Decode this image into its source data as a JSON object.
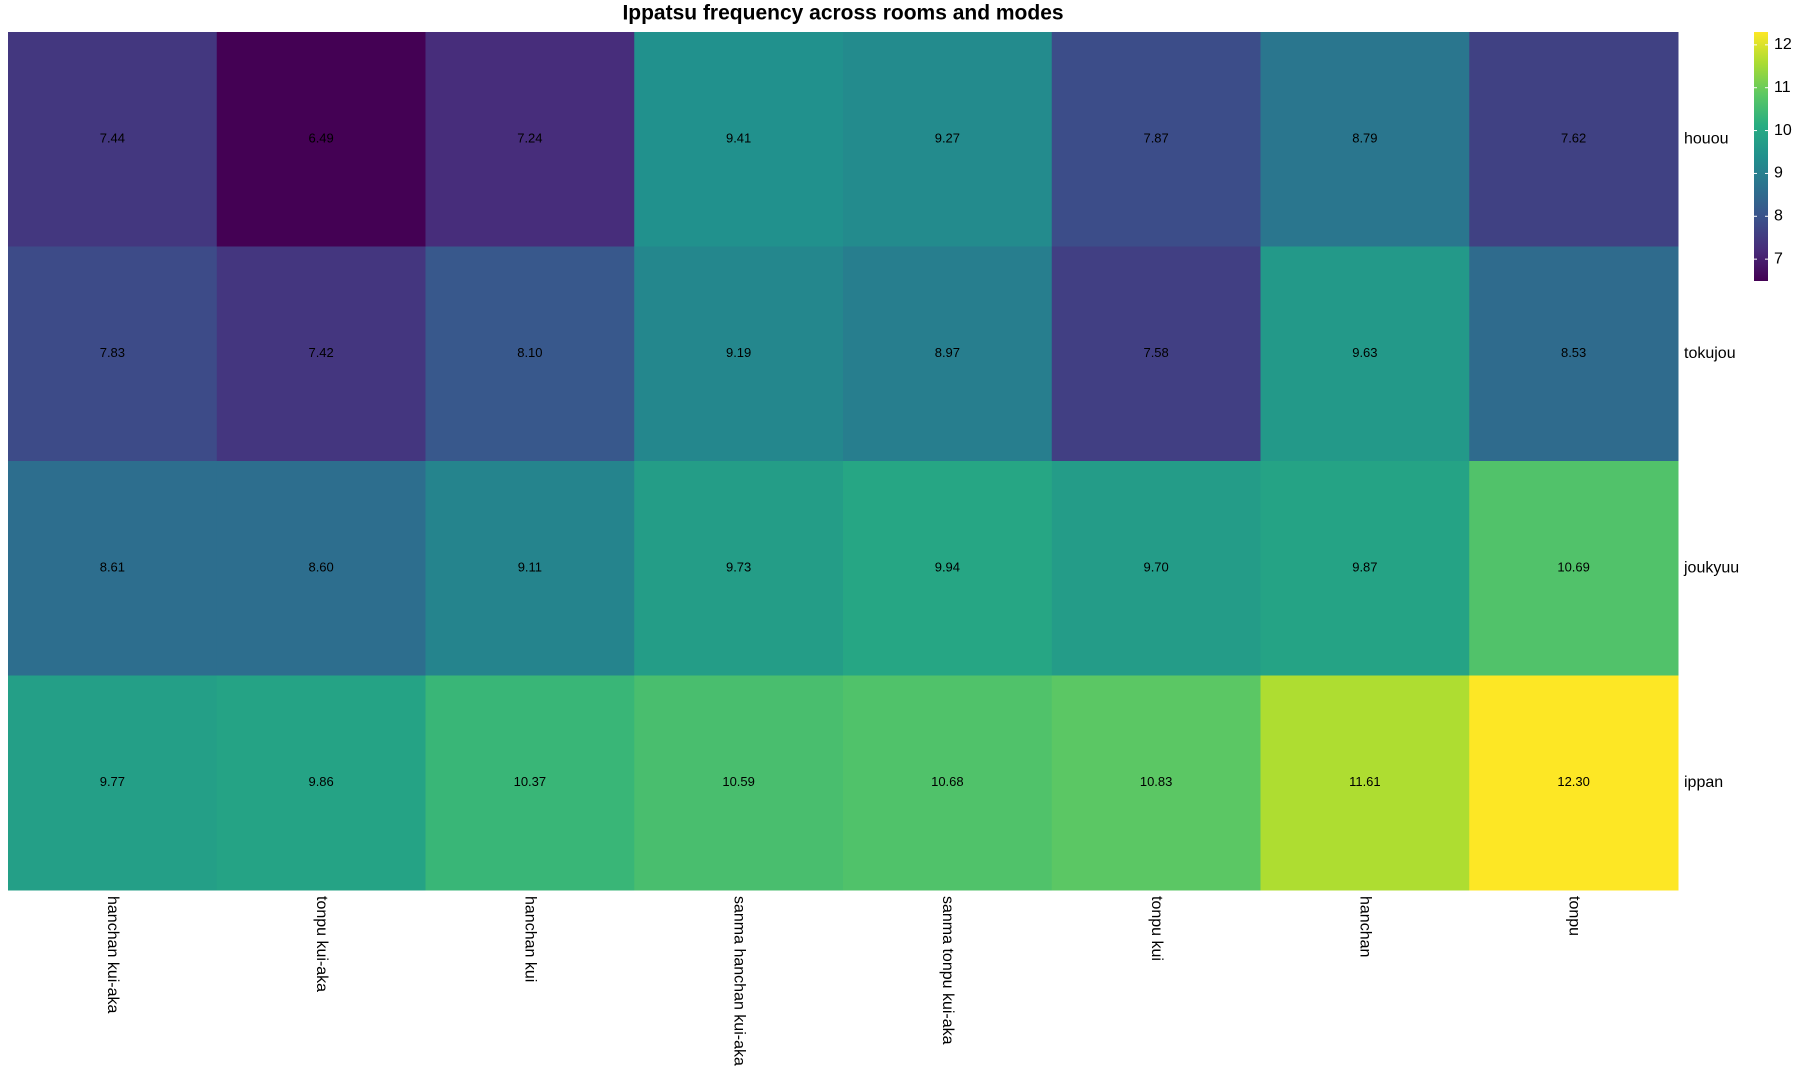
{
  "chart_data": {
    "type": "heatmap",
    "title": "Ippatsu frequency across rooms and modes",
    "x": [
      "hanchan kui-aka",
      "tonpu kui-aka",
      "hanchan kui",
      "sanma hanchan kui-aka",
      "sanma tonpu kui-aka",
      "tonpu kui",
      "hanchan",
      "tonpu"
    ],
    "y": [
      "houou",
      "tokujou",
      "joukyuu",
      "ippan"
    ],
    "values": [
      [
        7.44,
        6.49,
        7.24,
        9.41,
        9.27,
        7.87,
        8.79,
        7.62
      ],
      [
        7.83,
        7.42,
        8.1,
        9.19,
        8.97,
        7.58,
        9.63,
        8.53
      ],
      [
        8.61,
        8.6,
        9.11,
        9.73,
        9.94,
        9.7,
        9.87,
        10.69
      ],
      [
        9.77,
        9.86,
        10.37,
        10.59,
        10.68,
        10.83,
        11.61,
        12.3
      ]
    ],
    "value_labels": [
      [
        "7.44",
        "6.49",
        "7.24",
        "9.41",
        "9.27",
        "7.87",
        "8.79",
        "7.62"
      ],
      [
        "7.83",
        "7.42",
        "8.10",
        "9.19",
        "8.97",
        "7.58",
        "9.63",
        "8.53"
      ],
      [
        "8.61",
        "8.60",
        "9.11",
        "9.73",
        "9.94",
        "9.70",
        "9.87",
        "10.69"
      ],
      [
        "9.77",
        "9.86",
        "10.37",
        "10.59",
        "10.68",
        "10.83",
        "11.61",
        "12.30"
      ]
    ],
    "colormap": "viridis",
    "clim": [
      6.49,
      12.3
    ],
    "cticks": [
      7,
      8,
      9,
      10,
      11,
      12
    ]
  }
}
